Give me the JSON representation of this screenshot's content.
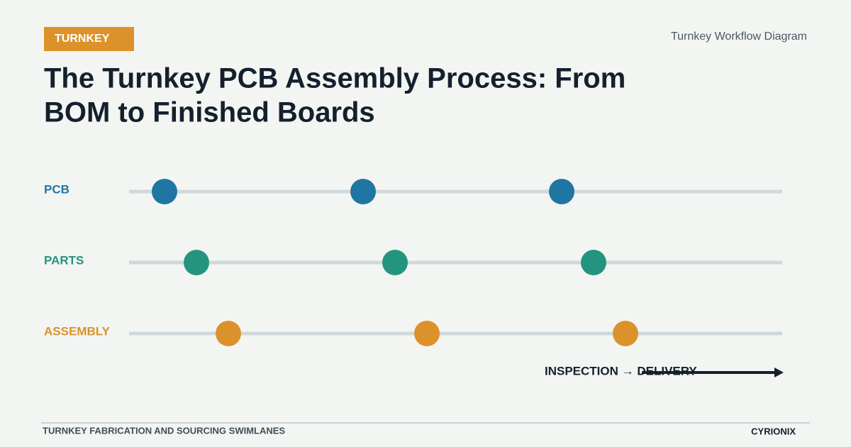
{
  "header": {
    "badge": "TURNKEY",
    "title_lines": [
      "The Turnkey PCB Assembly Process: From",
      "BOM to Finished Boards"
    ],
    "caption": "Turnkey Workflow Diagram"
  },
  "lanes": [
    {
      "label": "PCB"
    },
    {
      "label": "PARTS"
    },
    {
      "label": "ASSEMBLY"
    }
  ],
  "flow_label": "INSPECTION → DELIVERY",
  "footer": {
    "left": "TURNKEY FABRICATION AND SOURCING SWIMLANES",
    "right": "CYRIONIX"
  }
}
